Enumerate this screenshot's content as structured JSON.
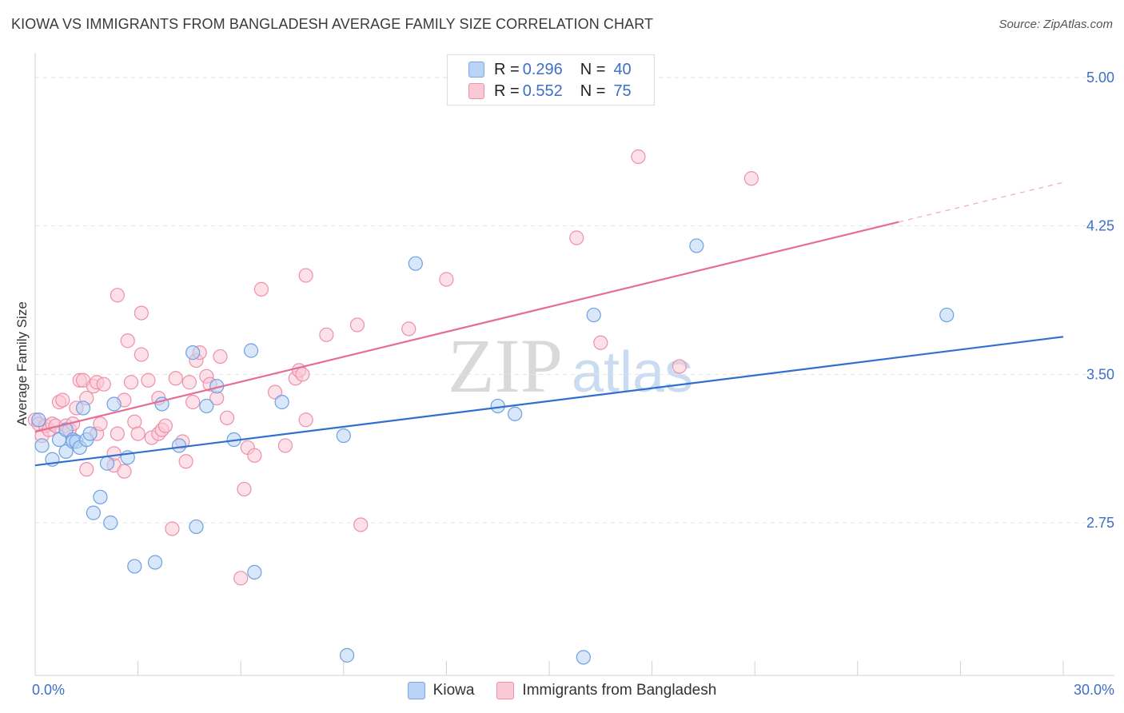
{
  "title": "KIOWA VS IMMIGRANTS FROM BANGLADESH AVERAGE FAMILY SIZE CORRELATION CHART",
  "source": "Source: ZipAtlas.com",
  "watermark": {
    "zip": "ZIP",
    "atlas": "atlas"
  },
  "legend": {
    "r_label": "R =",
    "n_label": "N =",
    "rows": [
      {
        "r": "0.296",
        "n": "40",
        "color": "#a9c8f0",
        "stroke": "#7aa7e0"
      },
      {
        "r": "0.552",
        "n": "75",
        "color": "#f7b8cb",
        "stroke": "#ee8fab"
      }
    ]
  },
  "bottom_legend": [
    {
      "label": "Kiowa",
      "color": "#b8d3f5",
      "stroke": "#7aa7e0"
    },
    {
      "label": "Immigrants from Bangladesh",
      "color": "#f9c9d6",
      "stroke": "#ee8fab"
    }
  ],
  "chart_data": {
    "type": "scatter",
    "title": "KIOWA VS IMMIGRANTS FROM BANGLADESH AVERAGE FAMILY SIZE CORRELATION CHART",
    "xlabel": "",
    "ylabel": "Average Family Size",
    "xlim": [
      0,
      30
    ],
    "ylim": [
      2.0,
      5.08
    ],
    "x_tick_labels": [
      {
        "value": 0,
        "label": "0.0%"
      },
      {
        "value": 30,
        "label": "30.0%"
      }
    ],
    "y_ticks": [
      {
        "value": 2.75,
        "label": "2.75"
      },
      {
        "value": 3.5,
        "label": "3.50"
      },
      {
        "value": 4.25,
        "label": "4.25"
      },
      {
        "value": 5.0,
        "label": "5.00"
      }
    ],
    "grid": "horizontal dashed",
    "legend_position": "top-center",
    "series": [
      {
        "name": "Kiowa",
        "color": "#6fa0e0",
        "fill": "#b8d3f5",
        "line_color": "#2f6fcf",
        "trend": {
          "x": [
            0,
            30
          ],
          "y": [
            3.04,
            3.69
          ]
        },
        "points": [
          [
            0.2,
            3.14
          ],
          [
            0.5,
            3.07
          ],
          [
            0.7,
            3.17
          ],
          [
            0.9,
            3.22
          ],
          [
            0.9,
            3.11
          ],
          [
            1.1,
            3.17
          ],
          [
            1.1,
            3.16
          ],
          [
            1.2,
            3.16
          ],
          [
            1.3,
            3.13
          ],
          [
            1.4,
            3.33
          ],
          [
            1.5,
            3.17
          ],
          [
            1.6,
            3.2
          ],
          [
            1.7,
            2.8
          ],
          [
            1.9,
            2.88
          ],
          [
            2.1,
            3.05
          ],
          [
            2.2,
            2.75
          ],
          [
            2.3,
            3.35
          ],
          [
            2.7,
            3.08
          ],
          [
            2.9,
            2.53
          ],
          [
            3.5,
            2.55
          ],
          [
            3.7,
            3.35
          ],
          [
            4.2,
            3.14
          ],
          [
            4.6,
            3.61
          ],
          [
            4.7,
            2.73
          ],
          [
            5.0,
            3.34
          ],
          [
            5.3,
            3.44
          ],
          [
            5.8,
            3.17
          ],
          [
            6.3,
            3.62
          ],
          [
            6.4,
            2.5
          ],
          [
            7.2,
            3.36
          ],
          [
            9.0,
            3.19
          ],
          [
            9.1,
            2.08
          ],
          [
            11.1,
            4.06
          ],
          [
            13.5,
            3.34
          ],
          [
            14.0,
            3.3
          ],
          [
            16.0,
            2.07
          ],
          [
            16.3,
            3.8
          ],
          [
            19.3,
            4.15
          ],
          [
            26.6,
            3.8
          ],
          [
            0.1,
            3.27
          ]
        ]
      },
      {
        "name": "Immigrants from Bangladesh",
        "color": "#ee8fab",
        "fill": "#f9c9d6",
        "line_color": "#e46f92",
        "trend": {
          "x": [
            0,
            25.2
          ],
          "y": [
            3.21,
            4.27
          ]
        },
        "trend_dashed": {
          "x": [
            25.2,
            30
          ],
          "y": [
            4.27,
            4.47
          ]
        },
        "points": [
          [
            0.0,
            3.27
          ],
          [
            0.1,
            3.25
          ],
          [
            0.2,
            3.19
          ],
          [
            0.3,
            3.24
          ],
          [
            0.4,
            3.22
          ],
          [
            0.5,
            3.25
          ],
          [
            0.6,
            3.24
          ],
          [
            0.7,
            3.36
          ],
          [
            0.8,
            3.37
          ],
          [
            0.9,
            3.24
          ],
          [
            1.0,
            3.22
          ],
          [
            1.1,
            3.25
          ],
          [
            1.2,
            3.33
          ],
          [
            1.3,
            3.47
          ],
          [
            1.4,
            3.47
          ],
          [
            1.5,
            3.38
          ],
          [
            1.5,
            3.02
          ],
          [
            1.7,
            3.44
          ],
          [
            1.8,
            3.2
          ],
          [
            1.8,
            3.46
          ],
          [
            1.9,
            3.25
          ],
          [
            2.0,
            3.45
          ],
          [
            2.3,
            3.04
          ],
          [
            2.3,
            3.1
          ],
          [
            2.4,
            3.2
          ],
          [
            2.4,
            3.9
          ],
          [
            2.6,
            3.37
          ],
          [
            2.6,
            3.01
          ],
          [
            2.7,
            3.67
          ],
          [
            2.8,
            3.46
          ],
          [
            2.9,
            3.26
          ],
          [
            3.0,
            3.2
          ],
          [
            3.1,
            3.6
          ],
          [
            3.1,
            3.81
          ],
          [
            3.3,
            3.47
          ],
          [
            3.4,
            3.18
          ],
          [
            3.6,
            3.2
          ],
          [
            3.6,
            3.38
          ],
          [
            3.7,
            3.22
          ],
          [
            3.8,
            3.24
          ],
          [
            4.0,
            2.72
          ],
          [
            4.1,
            3.48
          ],
          [
            4.3,
            3.16
          ],
          [
            4.4,
            3.06
          ],
          [
            4.5,
            3.46
          ],
          [
            4.6,
            3.36
          ],
          [
            4.7,
            3.57
          ],
          [
            4.8,
            3.61
          ],
          [
            5.0,
            3.49
          ],
          [
            5.1,
            3.45
          ],
          [
            5.3,
            3.38
          ],
          [
            5.4,
            3.59
          ],
          [
            5.6,
            3.28
          ],
          [
            6.0,
            2.47
          ],
          [
            6.1,
            2.92
          ],
          [
            6.2,
            3.13
          ],
          [
            6.4,
            3.09
          ],
          [
            6.6,
            3.93
          ],
          [
            7.0,
            3.41
          ],
          [
            7.3,
            3.14
          ],
          [
            7.6,
            3.48
          ],
          [
            7.7,
            3.52
          ],
          [
            7.8,
            3.5
          ],
          [
            7.9,
            4.0
          ],
          [
            7.9,
            3.27
          ],
          [
            8.5,
            3.7
          ],
          [
            9.4,
            3.75
          ],
          [
            9.5,
            2.74
          ],
          [
            10.9,
            3.73
          ],
          [
            12.0,
            3.98
          ],
          [
            15.8,
            4.19
          ],
          [
            16.5,
            3.66
          ],
          [
            17.6,
            4.6
          ],
          [
            18.8,
            3.54
          ],
          [
            20.9,
            4.49
          ]
        ]
      }
    ]
  }
}
